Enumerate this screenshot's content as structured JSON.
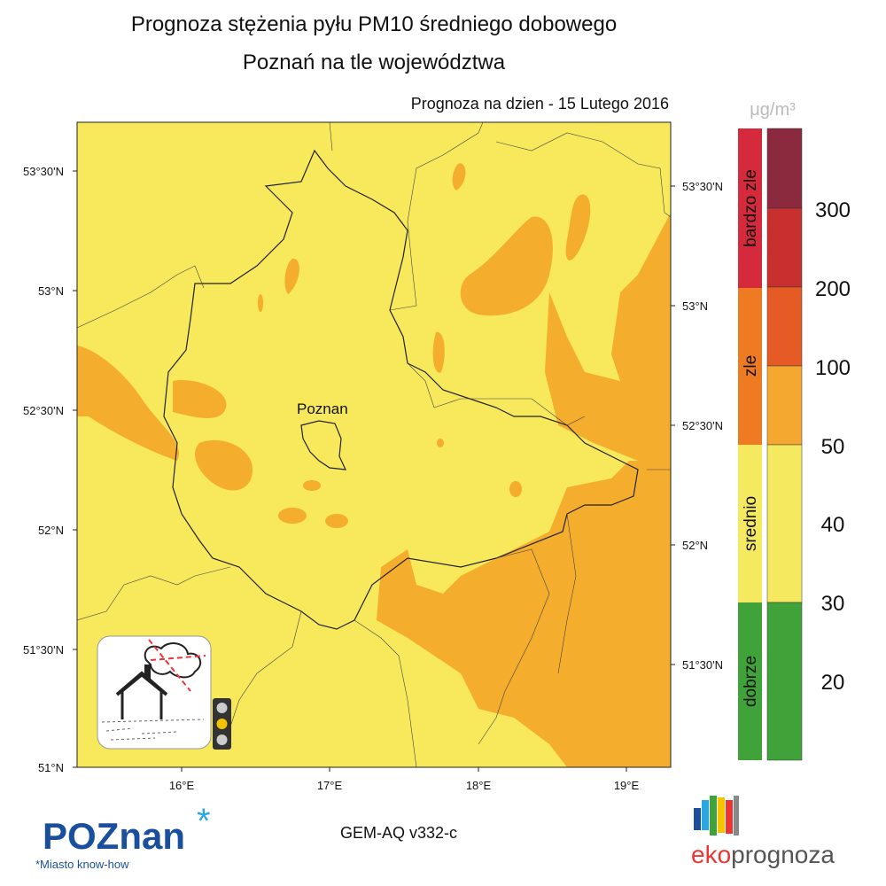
{
  "title": "Prognoza stężenia pyłu PM10 średniego dobowego",
  "subtitle": "Poznań na tle województwa",
  "date_label": "Prognoza na dzien -  15 Lutego 2016",
  "city_label": "Poznan",
  "lat_labels_left": [
    "53°30'N",
    "53°N",
    "52°30'N",
    "52°N",
    "51°30'N",
    "51°N"
  ],
  "lat_labels_right": [
    "53°30'N",
    "53°N",
    "52°30'N",
    "52°N",
    "51°30'N"
  ],
  "lon_labels": [
    "16°E",
    "17°E",
    "18°E",
    "19°E"
  ],
  "legend": {
    "unit": "μg/m³",
    "categories": [
      "bardzo zle",
      "zle",
      "srednio",
      "dobrze"
    ],
    "levels": [
      300,
      200,
      100,
      50,
      40,
      30,
      20
    ]
  },
  "model": "GEM-AQ v332-c",
  "logo_left": "POZnan",
  "logo_left_tagline": "*Miasto know-how",
  "logo_right_a": "eko",
  "logo_right_b": "prognoza"
}
